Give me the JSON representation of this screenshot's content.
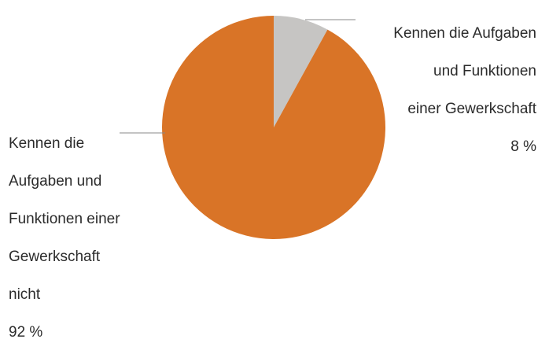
{
  "chart_data": {
    "type": "pie",
    "slices": [
      {
        "label_lines": [
          "Kennen die Aufgaben",
          "und Funktionen",
          "einer Gewerkschaft",
          "8 %"
        ],
        "value": 8,
        "color": "#c6c5c3"
      },
      {
        "label_lines": [
          "Kennen die",
          "Aufgaben und",
          "Funktionen einer",
          "Gewerkschaft",
          "nicht",
          "92 %"
        ],
        "value": 92,
        "color": "#d97427"
      }
    ],
    "start_angle_deg": 0,
    "direction": "clockwise",
    "leader_line_color": "#888888"
  }
}
